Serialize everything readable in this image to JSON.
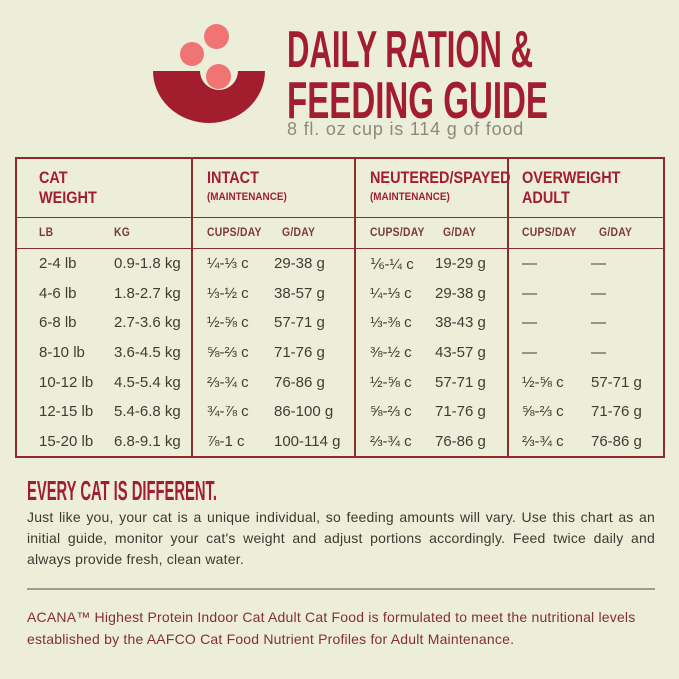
{
  "header": {
    "title_line1": "DAILY RATION &",
    "title_line2": "FEEDING GUIDE",
    "subtitle": "8 fl. oz cup is 114 g of food",
    "accent_color": "#A21E2F",
    "kibble_color": "#EF7473",
    "background_color": "#EDEEDA"
  },
  "table": {
    "groups": [
      {
        "line1": "CAT",
        "line2": "WEIGHT",
        "sub1": "LB",
        "sub2": "KG"
      },
      {
        "line1": "INTACT",
        "note": "(MAINTENANCE)",
        "sub1": "CUPS/DAY",
        "sub2": "G/DAY"
      },
      {
        "line1": "NEUTERED/SPAYED",
        "note": "(MAINTENANCE)",
        "sub1": "CUPS/DAY",
        "sub2": "G/DAY"
      },
      {
        "line1": "OVERWEIGHT",
        "line2": "ADULT",
        "sub1": "CUPS/DAY",
        "sub2": "G/DAY"
      }
    ],
    "rows": [
      {
        "lb": "2-4 lb",
        "kg": "0.9-1.8 kg",
        "intact_cups": "¼-⅓ c",
        "intact_g": "29-38 g",
        "neutered_cups": "⅙-¼ c",
        "neutered_g": "19-29 g",
        "overweight_cups": "—",
        "overweight_g": "—"
      },
      {
        "lb": "4-6 lb",
        "kg": "1.8-2.7 kg",
        "intact_cups": "⅓-½ c",
        "intact_g": "38-57 g",
        "neutered_cups": "¼-⅓ c",
        "neutered_g": "29-38 g",
        "overweight_cups": "—",
        "overweight_g": "—"
      },
      {
        "lb": "6-8 lb",
        "kg": "2.7-3.6 kg",
        "intact_cups": "½-⅝ c",
        "intact_g": "57-71 g",
        "neutered_cups": "⅓-⅜ c",
        "neutered_g": "38-43 g",
        "overweight_cups": "—",
        "overweight_g": "—"
      },
      {
        "lb": "8-10 lb",
        "kg": "3.6-4.5 kg",
        "intact_cups": "⅝-⅔ c",
        "intact_g": "71-76 g",
        "neutered_cups": "⅜-½ c",
        "neutered_g": "43-57 g",
        "overweight_cups": "—",
        "overweight_g": "—"
      },
      {
        "lb": "10-12 lb",
        "kg": "4.5-5.4 kg",
        "intact_cups": "⅔-¾ c",
        "intact_g": "76-86 g",
        "neutered_cups": "½-⅝ c",
        "neutered_g": "57-71 g",
        "overweight_cups": "½-⅝ c",
        "overweight_g": "57-71 g"
      },
      {
        "lb": "12-15 lb",
        "kg": "5.4-6.8 kg",
        "intact_cups": "¾-⅞ c",
        "intact_g": "86-100 g",
        "neutered_cups": "⅝-⅔ c",
        "neutered_g": "71-76 g",
        "overweight_cups": "⅝-⅔ c",
        "overweight_g": "71-76 g"
      },
      {
        "lb": "15-20 lb",
        "kg": "6.8-9.1 kg",
        "intact_cups": "⅞-1 c",
        "intact_g": "100-114 g",
        "neutered_cups": "⅔-¾ c",
        "neutered_g": "76-86 g",
        "overweight_cups": "⅔-¾ c",
        "overweight_g": "76-86 g"
      }
    ]
  },
  "different_section": {
    "heading": "EVERY CAT IS DIFFERENT.",
    "body": "Just like you, your cat is a unique individual, so feeding amounts will vary. Use this chart as an initial guide, monitor your cat's weight and adjust portions accordingly. Feed twice daily and always provide fresh, clean water."
  },
  "footnote": "ACANA™ Highest Protein Indoor Cat Adult Cat Food is formulated to meet the nutritional levels established by the AAFCO Cat Food Nutrient Profiles for Adult Maintenance."
}
